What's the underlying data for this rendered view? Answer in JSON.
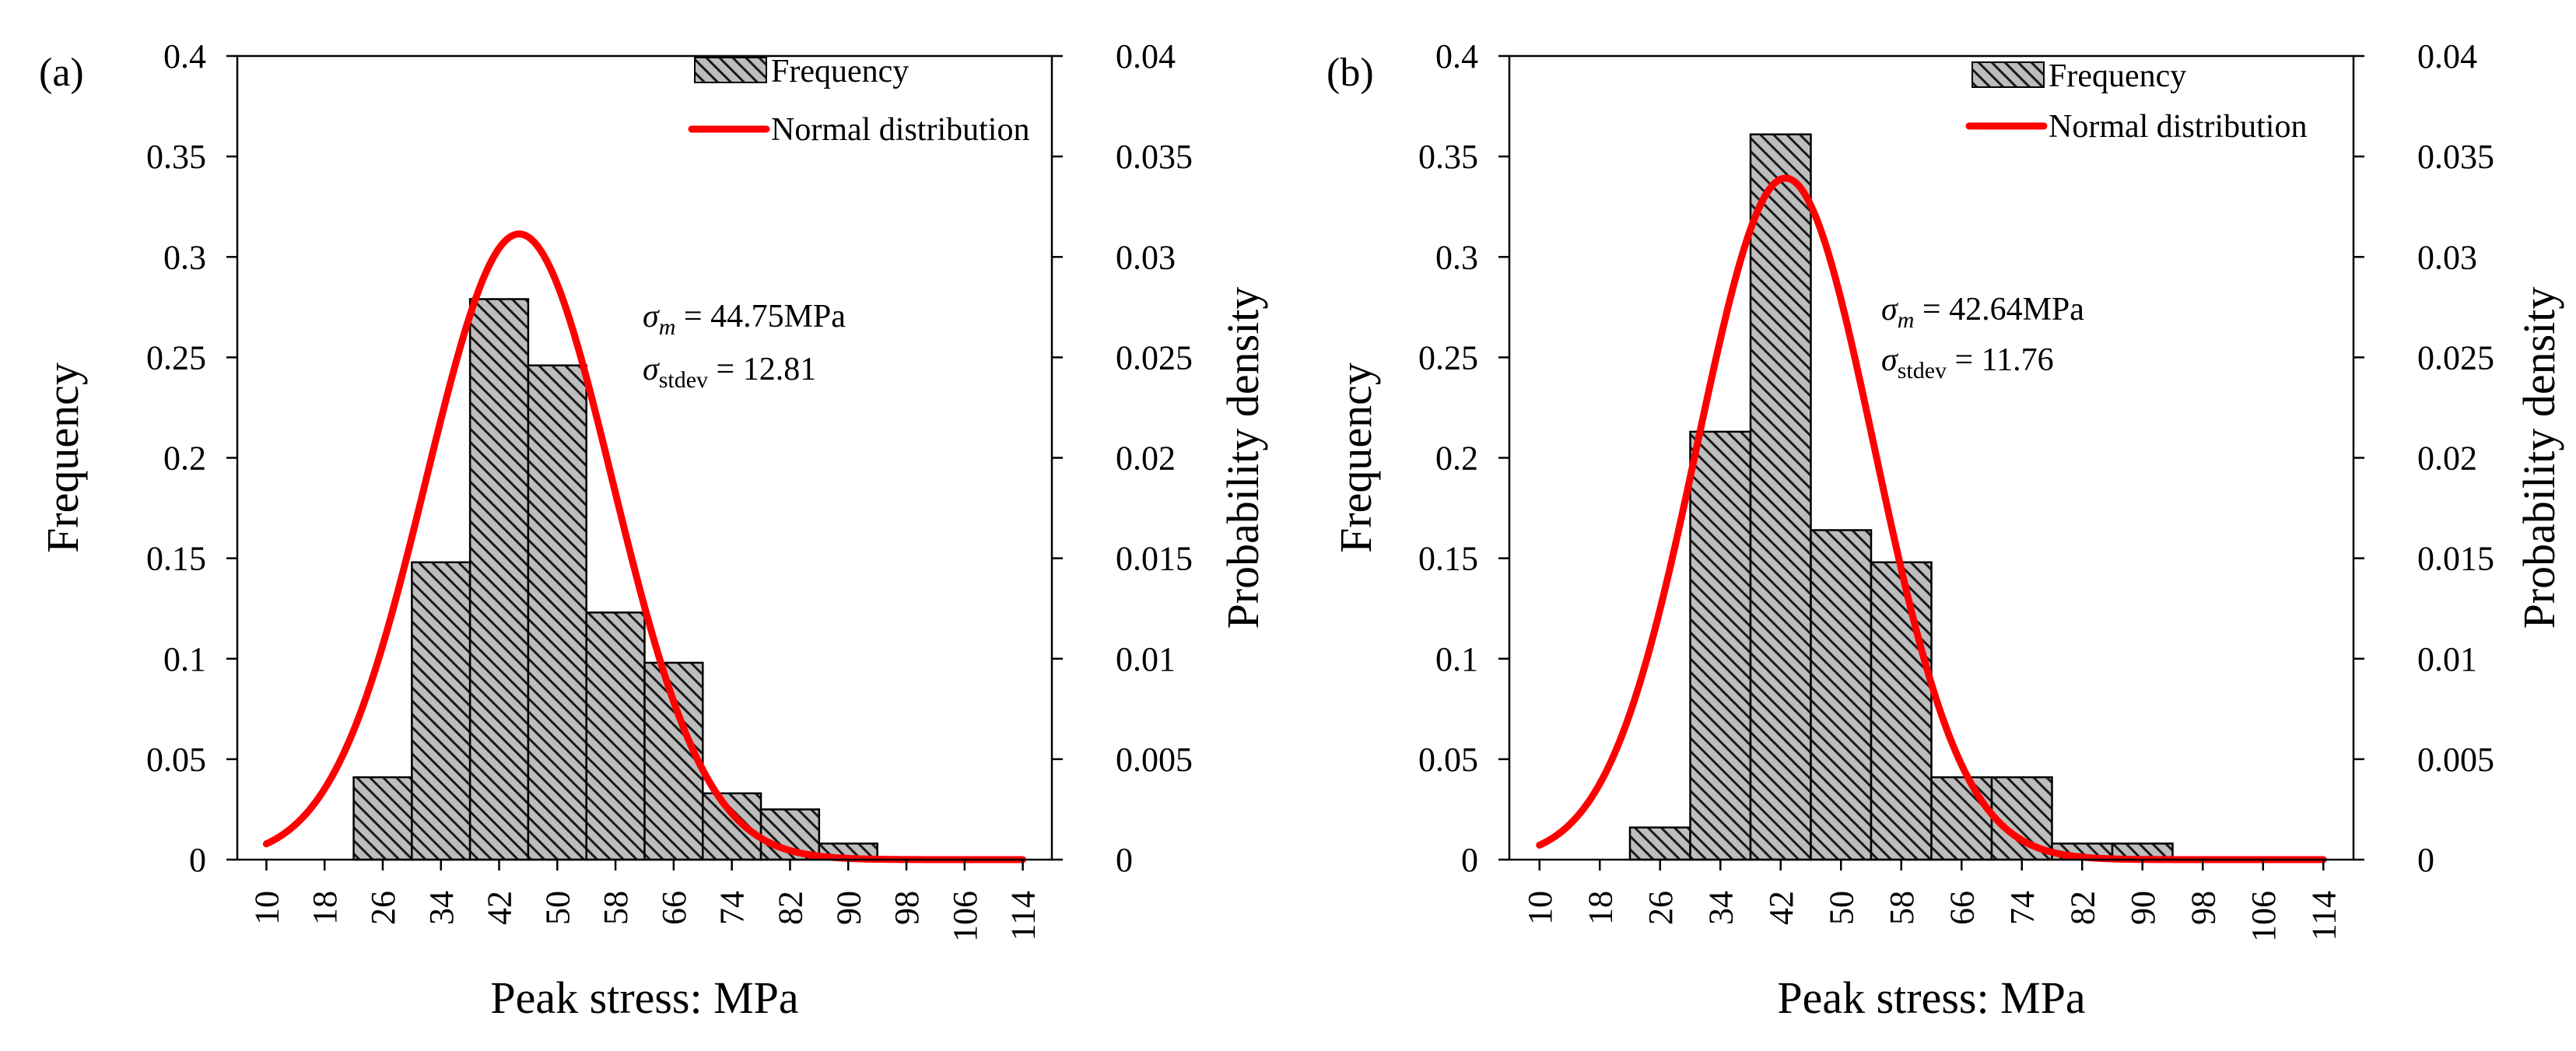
{
  "figure": {
    "panel_labels": [
      "(a)",
      "(b)"
    ]
  },
  "colors": {
    "bar_fill": "#bdbdbd",
    "bar_hatch": "#1a1a1a",
    "curve": "#ff0000",
    "axis": "#000000"
  },
  "chart_data": [
    {
      "type": "bar",
      "panel": "(a)",
      "title": "",
      "xlabel": "Peak stress: MPa",
      "ylabel": "Frequency",
      "y2label": "Probability density",
      "x_ticks": [
        "10",
        "18",
        "26",
        "34",
        "42",
        "50",
        "58",
        "66",
        "74",
        "82",
        "90",
        "98",
        "106",
        "114"
      ],
      "x_range": [
        6,
        118
      ],
      "ylim": [
        0,
        0.4
      ],
      "y_ticks": [
        "0",
        "0.05",
        "0.1",
        "0.15",
        "0.2",
        "0.25",
        "0.3",
        "0.35",
        "0.4"
      ],
      "y2lim": [
        0,
        0.04
      ],
      "y2_ticks": [
        "0",
        "0.005",
        "0.01",
        "0.015",
        "0.02",
        "0.025",
        "0.03",
        "0.035",
        "0.04"
      ],
      "bin_width": 8,
      "bins": [
        {
          "start": 22,
          "value": 0.041
        },
        {
          "start": 30,
          "value": 0.148
        },
        {
          "start": 38,
          "value": 0.279
        },
        {
          "start": 46,
          "value": 0.246
        },
        {
          "start": 54,
          "value": 0.123
        },
        {
          "start": 62,
          "value": 0.098
        },
        {
          "start": 70,
          "value": 0.033
        },
        {
          "start": 78,
          "value": 0.025
        },
        {
          "start": 86,
          "value": 0.008
        }
      ],
      "normal": {
        "mean": 44.75,
        "stdev": 12.81,
        "x_from": 10,
        "x_to": 114
      },
      "legend": {
        "bar": "Frequency",
        "line": "Normal distribution",
        "position": "top-right"
      },
      "stats": {
        "mean_label": "44.75MPa",
        "stdev_label": "12.81"
      }
    },
    {
      "type": "bar",
      "panel": "(b)",
      "title": "",
      "xlabel": "Peak stress: MPa",
      "ylabel": "Frequency",
      "y2label": "Probability density",
      "x_ticks": [
        "10",
        "18",
        "26",
        "34",
        "42",
        "50",
        "58",
        "66",
        "74",
        "82",
        "90",
        "98",
        "106",
        "114"
      ],
      "x_range": [
        6,
        118
      ],
      "ylim": [
        0,
        0.4
      ],
      "y_ticks": [
        "0",
        "0.05",
        "0.1",
        "0.15",
        "0.2",
        "0.25",
        "0.3",
        "0.35",
        "0.4"
      ],
      "y2lim": [
        0,
        0.04
      ],
      "y2_ticks": [
        "0",
        "0.005",
        "0.01",
        "0.015",
        "0.02",
        "0.025",
        "0.03",
        "0.035",
        "0.04"
      ],
      "bin_width": 8,
      "bins": [
        {
          "start": 22,
          "value": 0.016
        },
        {
          "start": 30,
          "value": 0.213
        },
        {
          "start": 38,
          "value": 0.361
        },
        {
          "start": 46,
          "value": 0.164
        },
        {
          "start": 54,
          "value": 0.148
        },
        {
          "start": 62,
          "value": 0.041
        },
        {
          "start": 70,
          "value": 0.041
        },
        {
          "start": 78,
          "value": 0.008
        },
        {
          "start": 86,
          "value": 0.008
        }
      ],
      "normal": {
        "mean": 42.64,
        "stdev": 11.76,
        "x_from": 10,
        "x_to": 114
      },
      "legend": {
        "bar": "Frequency",
        "line": "Normal distribution",
        "position": "top-right"
      },
      "stats": {
        "mean_label": "42.64MPa",
        "stdev_label": "11.76"
      }
    }
  ]
}
